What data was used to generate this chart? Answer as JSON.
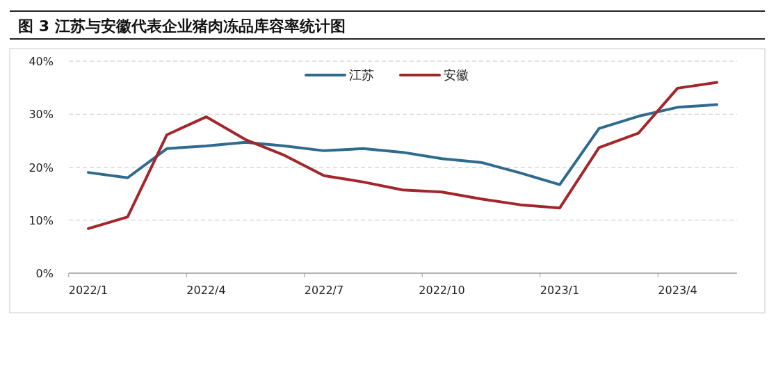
{
  "chart_data": {
    "type": "line",
    "title": "图 3 江苏与安徽代表企业猪肉冻品库容率统计图",
    "categories": [
      "2022/1",
      null,
      null,
      "2022/4",
      null,
      null,
      "2022/7",
      null,
      null,
      "2022/10",
      null,
      null,
      "2023/1",
      null,
      null,
      "2023/4",
      null
    ],
    "series": [
      {
        "name": "江苏",
        "color": "#2f6b8f",
        "values": [
          19.0,
          18.0,
          23.5,
          24.0,
          24.7,
          24.0,
          23.1,
          23.5,
          22.8,
          21.6,
          20.9,
          18.9,
          16.7,
          27.3,
          29.6,
          31.3,
          31.8
        ]
      },
      {
        "name": "安徽",
        "color": "#a3262a",
        "values": [
          8.4,
          10.6,
          26.1,
          29.5,
          25.2,
          22.2,
          18.4,
          17.2,
          15.7,
          15.3,
          14.0,
          12.9,
          12.3,
          23.7,
          26.4,
          34.9,
          36.0
        ]
      }
    ],
    "ylim": [
      0,
      40
    ],
    "yticks": [
      {
        "value": 0,
        "label": "0%"
      },
      {
        "value": 10,
        "label": "10%"
      },
      {
        "value": 20,
        "label": "20%"
      },
      {
        "value": 30,
        "label": "30%"
      },
      {
        "value": 40,
        "label": "40%"
      }
    ],
    "grid": "y",
    "legend": "top"
  }
}
